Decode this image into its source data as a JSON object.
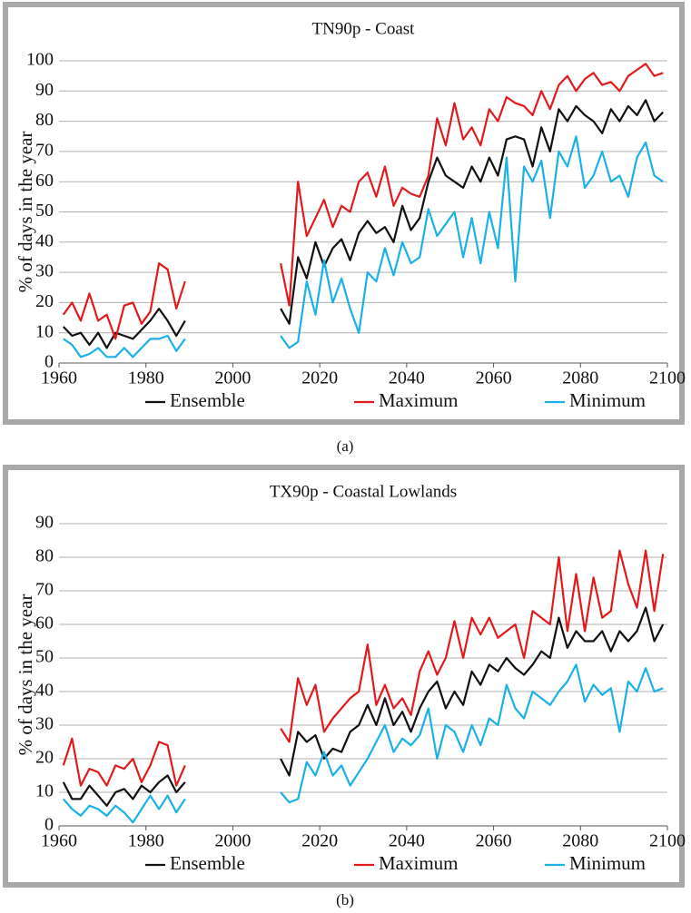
{
  "chart_data": [
    {
      "type": "line",
      "title": "TN90p - Coast",
      "ylabel": "% of days in the year",
      "caption": "(a)",
      "x": [
        1961,
        1963,
        1965,
        1967,
        1969,
        1971,
        1973,
        1975,
        1977,
        1979,
        1981,
        1983,
        1985,
        1987,
        1989,
        2000,
        2011,
        2013,
        2015,
        2017,
        2019,
        2021,
        2023,
        2025,
        2027,
        2029,
        2031,
        2033,
        2035,
        2037,
        2039,
        2041,
        2043,
        2045,
        2047,
        2049,
        2051,
        2053,
        2055,
        2057,
        2059,
        2061,
        2063,
        2065,
        2067,
        2069,
        2071,
        2073,
        2075,
        2077,
        2079,
        2081,
        2083,
        2085,
        2087,
        2089,
        2091,
        2093,
        2095,
        2097,
        2099
      ],
      "xlim": [
        1960,
        2100
      ],
      "xticks": [
        1960,
        1980,
        2000,
        2020,
        2040,
        2060,
        2080,
        2100
      ],
      "ylim": [
        0,
        100
      ],
      "yticks": [
        0,
        10,
        20,
        30,
        40,
        50,
        60,
        70,
        80,
        90,
        100
      ],
      "grid": true,
      "series": [
        {
          "name": "Ensemble",
          "color": "#111111",
          "values": [
            12,
            9,
            10,
            6,
            10,
            5,
            10,
            9,
            8,
            11,
            14,
            18,
            14,
            9,
            14,
            null,
            18,
            13,
            35,
            28,
            40,
            32,
            38,
            41,
            34,
            43,
            47,
            43,
            45,
            40,
            52,
            44,
            48,
            60,
            68,
            62,
            60,
            58,
            65,
            60,
            68,
            62,
            74,
            75,
            74,
            65,
            78,
            70,
            84,
            80,
            85,
            82,
            80,
            76,
            84,
            80,
            85,
            82,
            87,
            80,
            83
          ]
        },
        {
          "name": "Maximum",
          "color": "#e31a1c",
          "values": [
            16,
            20,
            14,
            23,
            14,
            16,
            8,
            19,
            20,
            13,
            17,
            33,
            31,
            18,
            27,
            null,
            33,
            19,
            60,
            42,
            48,
            54,
            45,
            52,
            50,
            60,
            63,
            55,
            65,
            52,
            58,
            56,
            55,
            62,
            81,
            72,
            86,
            74,
            78,
            72,
            84,
            80,
            88,
            86,
            85,
            82,
            90,
            84,
            92,
            95,
            90,
            94,
            96,
            92,
            93,
            90,
            95,
            97,
            99,
            95,
            96
          ]
        },
        {
          "name": "Minimum",
          "color": "#1ab0e8",
          "values": [
            8,
            6,
            2,
            3,
            5,
            2,
            2,
            5,
            2,
            5,
            8,
            8,
            9,
            4,
            8,
            null,
            9,
            5,
            7,
            27,
            16,
            34,
            20,
            28,
            18,
            10,
            30,
            27,
            38,
            29,
            40,
            33,
            35,
            51,
            42,
            46,
            50,
            35,
            48,
            33,
            50,
            38,
            68,
            27,
            65,
            60,
            67,
            48,
            70,
            65,
            75,
            58,
            62,
            70,
            60,
            62,
            55,
            68,
            73,
            62,
            60
          ]
        }
      ]
    },
    {
      "type": "line",
      "title": "TX90p - Coastal Lowlands",
      "ylabel": "% of days in the year",
      "caption": "(b)",
      "x": [
        1961,
        1963,
        1965,
        1967,
        1969,
        1971,
        1973,
        1975,
        1977,
        1979,
        1981,
        1983,
        1985,
        1987,
        1989,
        2000,
        2011,
        2013,
        2015,
        2017,
        2019,
        2021,
        2023,
        2025,
        2027,
        2029,
        2031,
        2033,
        2035,
        2037,
        2039,
        2041,
        2043,
        2045,
        2047,
        2049,
        2051,
        2053,
        2055,
        2057,
        2059,
        2061,
        2063,
        2065,
        2067,
        2069,
        2071,
        2073,
        2075,
        2077,
        2079,
        2081,
        2083,
        2085,
        2087,
        2089,
        2091,
        2093,
        2095,
        2097,
        2099
      ],
      "xlim": [
        1960,
        2100
      ],
      "xticks": [
        1960,
        1980,
        2000,
        2020,
        2040,
        2060,
        2080,
        2100
      ],
      "ylim": [
        0,
        90
      ],
      "yticks": [
        0,
        10,
        20,
        30,
        40,
        50,
        60,
        70,
        80,
        90
      ],
      "grid": true,
      "series": [
        {
          "name": "Ensemble",
          "color": "#111111",
          "values": [
            13,
            8,
            8,
            12,
            9,
            6,
            10,
            11,
            8,
            12,
            10,
            13,
            15,
            10,
            13,
            null,
            20,
            15,
            28,
            25,
            27,
            20,
            23,
            22,
            28,
            30,
            36,
            30,
            38,
            30,
            34,
            28,
            35,
            40,
            43,
            35,
            40,
            36,
            46,
            42,
            48,
            46,
            50,
            47,
            45,
            48,
            52,
            50,
            62,
            53,
            58,
            55,
            55,
            58,
            52,
            58,
            55,
            58,
            65,
            55,
            60
          ]
        },
        {
          "name": "Maximum",
          "color": "#e31a1c",
          "values": [
            18,
            26,
            12,
            17,
            16,
            12,
            18,
            17,
            20,
            13,
            18,
            25,
            24,
            12,
            18,
            null,
            29,
            25,
            44,
            36,
            42,
            28,
            32,
            35,
            38,
            40,
            54,
            36,
            42,
            35,
            38,
            33,
            46,
            52,
            45,
            50,
            61,
            50,
            62,
            57,
            62,
            56,
            58,
            60,
            50,
            64,
            62,
            60,
            80,
            58,
            75,
            58,
            74,
            62,
            64,
            82,
            72,
            65,
            82,
            64,
            81
          ]
        },
        {
          "name": "Minimum",
          "color": "#1ab0e8",
          "values": [
            8,
            5,
            3,
            6,
            5,
            3,
            6,
            4,
            1,
            5,
            9,
            5,
            9,
            4,
            8,
            null,
            10,
            7,
            8,
            19,
            15,
            22,
            15,
            18,
            12,
            16,
            20,
            25,
            30,
            22,
            26,
            24,
            27,
            35,
            20,
            30,
            28,
            22,
            30,
            24,
            32,
            30,
            42,
            35,
            32,
            40,
            38,
            36,
            40,
            43,
            48,
            37,
            42,
            39,
            41,
            28,
            43,
            40,
            47,
            40,
            41
          ]
        }
      ]
    }
  ]
}
